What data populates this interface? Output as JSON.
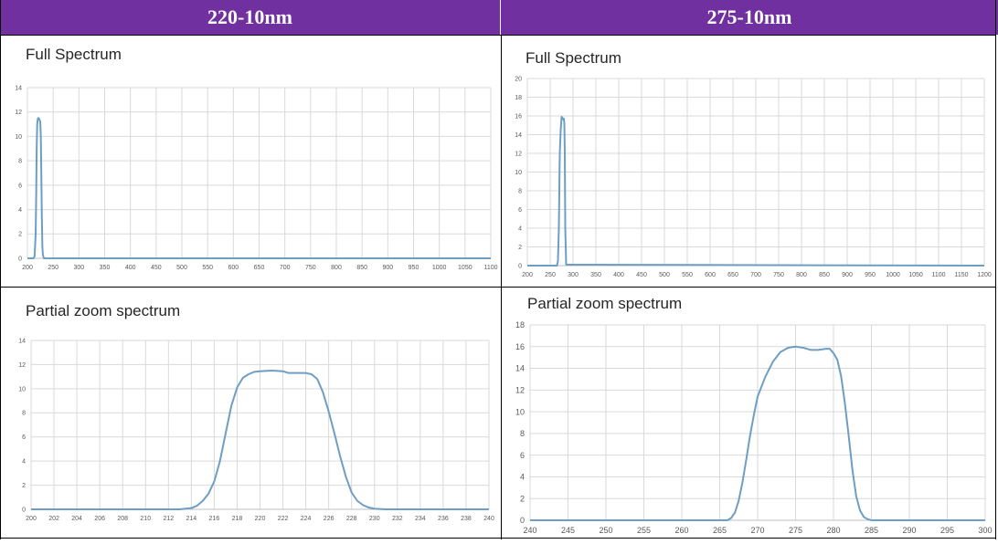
{
  "headers": {
    "left": "220-10nm",
    "right": "275-10nm"
  },
  "panels": {
    "tl_title": "Full Spectrum",
    "tr_title": "Full Spectrum",
    "bl_title": "Partial zoom spectrum",
    "br_title": "Partial zoom spectrum"
  },
  "line_color": "#6e9ec4",
  "chart_data": [
    {
      "id": "tl",
      "type": "line",
      "title": "Full Spectrum",
      "xlim": [
        200,
        1100
      ],
      "ylim": [
        0,
        14
      ],
      "xticks": [
        200,
        250,
        300,
        350,
        400,
        450,
        500,
        550,
        600,
        650,
        700,
        750,
        800,
        850,
        900,
        950,
        1000,
        1050,
        1100
      ],
      "yticks": [
        0,
        2,
        4,
        6,
        8,
        10,
        12,
        14
      ],
      "grid": true,
      "x": [
        200,
        212,
        214,
        216,
        217,
        218,
        219,
        220,
        221,
        222,
        223,
        224,
        225,
        226,
        227,
        228,
        229,
        230,
        232,
        1100
      ],
      "y": [
        0,
        0,
        0.2,
        2,
        5,
        9,
        11,
        11.4,
        11.5,
        11.5,
        11.4,
        11.3,
        11.2,
        10,
        7,
        3.5,
        1,
        0.3,
        0,
        0
      ]
    },
    {
      "id": "tr",
      "type": "line",
      "title": "Full Spectrum",
      "xlim": [
        200,
        1200
      ],
      "ylim": [
        0,
        20
      ],
      "xticks": [
        200,
        250,
        300,
        350,
        400,
        450,
        500,
        550,
        600,
        650,
        700,
        750,
        800,
        850,
        900,
        950,
        1000,
        1050,
        1100,
        1150,
        1200
      ],
      "yticks": [
        0,
        2,
        4,
        6,
        8,
        10,
        12,
        14,
        16,
        18,
        20
      ],
      "grid": true,
      "x": [
        200,
        265,
        267,
        269,
        271,
        273,
        275,
        277,
        279,
        280,
        281,
        282,
        283,
        285,
        1200
      ],
      "y": [
        0,
        0,
        0.5,
        4,
        12,
        14.5,
        15.9,
        15.8,
        15.6,
        15.7,
        15.2,
        12,
        4,
        0.1,
        0
      ]
    },
    {
      "id": "bl",
      "type": "line",
      "title": "Partial zoom spectrum",
      "xlim": [
        200,
        240
      ],
      "ylim": [
        0,
        14
      ],
      "xticks": [
        200,
        202,
        204,
        206,
        208,
        210,
        212,
        214,
        216,
        218,
        220,
        222,
        224,
        226,
        228,
        230,
        232,
        234,
        236,
        238,
        240
      ],
      "yticks": [
        0,
        2,
        4,
        6,
        8,
        10,
        12,
        14
      ],
      "grid": true,
      "x": [
        200,
        213,
        214,
        214.5,
        215,
        215.5,
        216,
        216.5,
        217,
        217.5,
        218,
        218.5,
        219,
        219.5,
        220,
        221,
        222,
        222.5,
        223,
        224,
        224.5,
        225,
        225.5,
        226,
        226.5,
        227,
        227.5,
        228,
        228.5,
        229,
        229.5,
        230,
        231,
        232,
        240
      ],
      "y": [
        0,
        0,
        0.1,
        0.3,
        0.7,
        1.3,
        2.3,
        4,
        6.3,
        8.6,
        10.1,
        10.9,
        11.2,
        11.4,
        11.45,
        11.5,
        11.45,
        11.3,
        11.3,
        11.3,
        11.2,
        10.8,
        9.7,
        8.1,
        6.3,
        4.4,
        2.7,
        1.4,
        0.7,
        0.35,
        0.15,
        0.05,
        0,
        0,
        0
      ]
    },
    {
      "id": "br",
      "type": "line",
      "title": "Partial zoom spectrum",
      "xlim": [
        240,
        300
      ],
      "ylim": [
        0,
        18
      ],
      "xticks": [
        240,
        245,
        250,
        255,
        260,
        265,
        270,
        275,
        280,
        285,
        290,
        295,
        300
      ],
      "yticks": [
        0,
        2,
        4,
        6,
        8,
        10,
        12,
        14,
        16,
        18
      ],
      "grid": true,
      "x": [
        240,
        266,
        266.5,
        267,
        267.5,
        268,
        268.5,
        269,
        269.5,
        270,
        271,
        272,
        273,
        274,
        275,
        276,
        277,
        278,
        279,
        279.5,
        280,
        280.5,
        281,
        281.5,
        282,
        282.5,
        283,
        283.5,
        284,
        284.5,
        285,
        286,
        300
      ],
      "y": [
        0,
        0,
        0.2,
        0.7,
        1.8,
        3.5,
        5.6,
        7.8,
        9.7,
        11.4,
        13.2,
        14.6,
        15.5,
        15.9,
        16,
        15.9,
        15.7,
        15.7,
        15.8,
        15.8,
        15.4,
        14.8,
        13.3,
        10.8,
        7.8,
        4.6,
        2.2,
        0.9,
        0.3,
        0.1,
        0,
        0,
        0
      ]
    }
  ]
}
